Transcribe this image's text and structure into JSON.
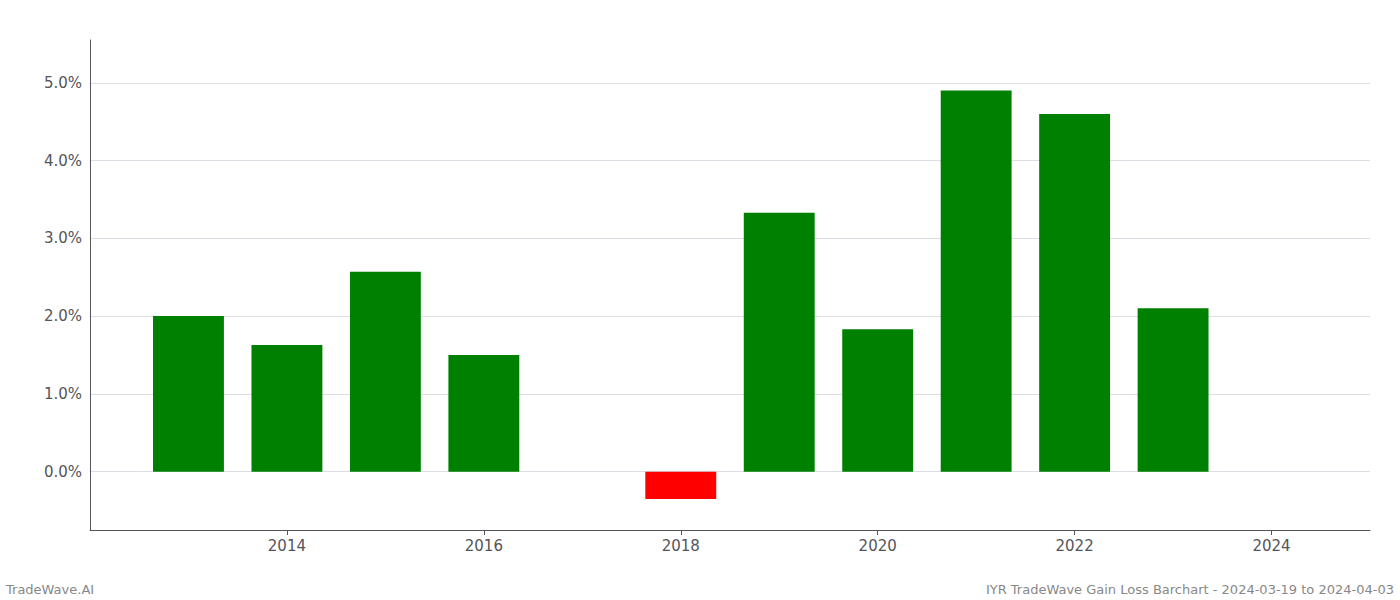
{
  "chart_data": {
    "type": "bar",
    "x": [
      2013,
      2014,
      2015,
      2016,
      2017,
      2018,
      2019,
      2020,
      2021,
      2022,
      2023
    ],
    "values": [
      2.0,
      1.63,
      2.57,
      1.5,
      null,
      -0.35,
      3.33,
      1.83,
      4.9,
      4.6,
      2.1
    ],
    "colors": [
      "#008000",
      "#008000",
      "#008000",
      "#008000",
      null,
      "#ff0000",
      "#008000",
      "#008000",
      "#008000",
      "#008000",
      "#008000"
    ],
    "xlim": [
      2012.0,
      2025.0
    ],
    "xticks": [
      2014,
      2016,
      2018,
      2020,
      2022,
      2024
    ],
    "ylim": [
      -0.75,
      5.55
    ],
    "yticks": [
      {
        "value": 0.0,
        "label": "0.0%"
      },
      {
        "value": 1.0,
        "label": "1.0%"
      },
      {
        "value": 2.0,
        "label": "2.0%"
      },
      {
        "value": 3.0,
        "label": "3.0%"
      },
      {
        "value": 4.0,
        "label": "4.0%"
      },
      {
        "value": 5.0,
        "label": "5.0%"
      }
    ],
    "grid": true,
    "annotations": [
      "TradeWave.AI",
      "IYR TradeWave Gain Loss Barchart - 2024-03-19 to 2024-04-03"
    ]
  }
}
